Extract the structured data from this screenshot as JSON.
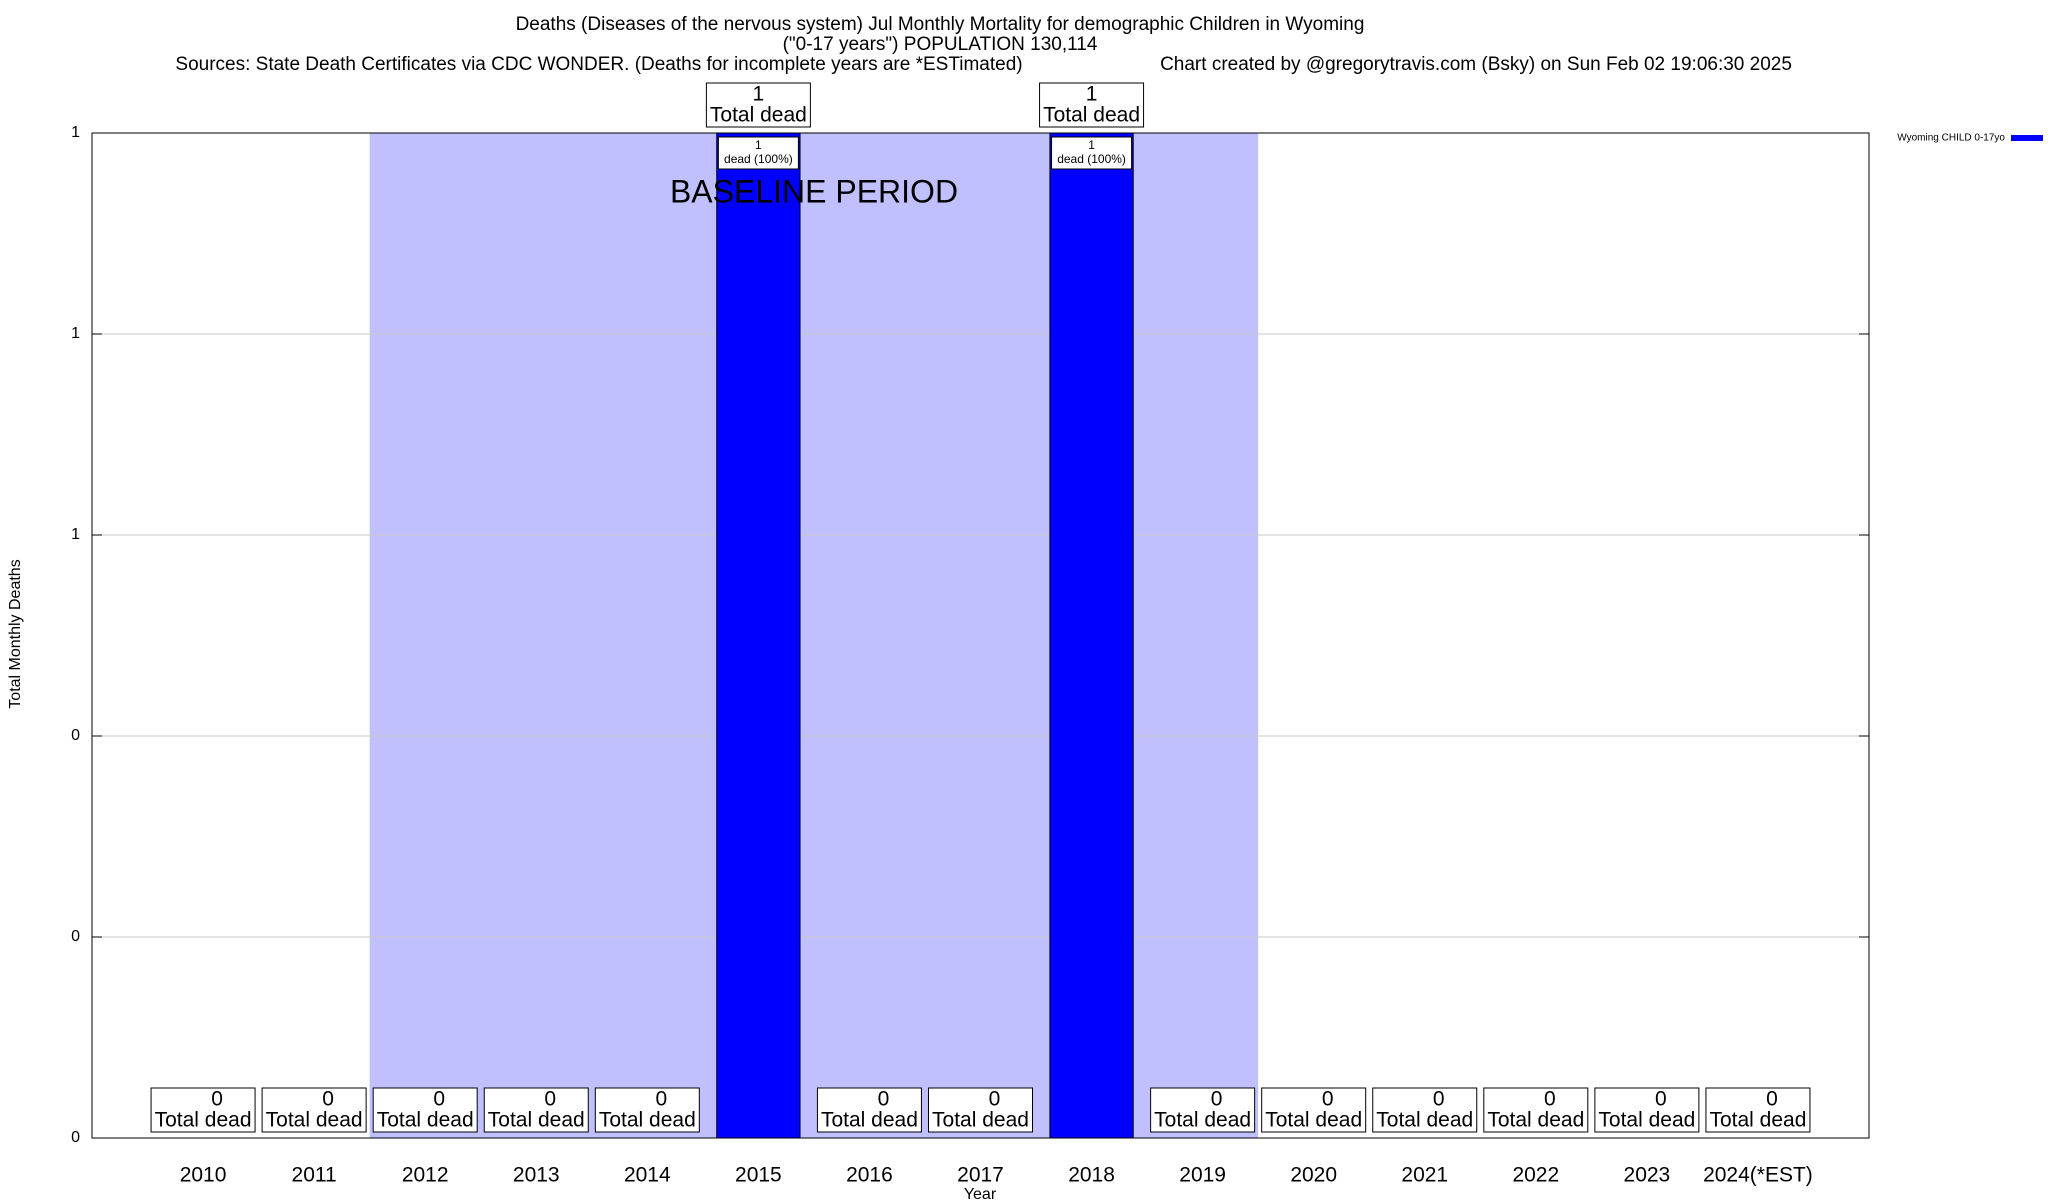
{
  "chart_data": {
    "type": "bar",
    "title": "Deaths (Diseases of the nervous system) Jul Monthly Mortality for demographic Children in Wyoming",
    "subtitle": "(\"0-17 years\") POPULATION 130,114",
    "source": "Sources: State Death Certificates via CDC WONDER. (Deaths for incomplete years are *ESTimated)",
    "credit": "Chart created by @gregorytravis.com (Bsky) on Sun Feb 02 19:06:30 2025",
    "x_label": "Year",
    "y_label": "Total Monthly Deaths",
    "categories": [
      "2010",
      "2011",
      "2012",
      "2013",
      "2014",
      "2015",
      "2016",
      "2017",
      "2018",
      "2019",
      "2020",
      "2021",
      "2022",
      "2023",
      "2024(*EST)"
    ],
    "series": [
      {
        "name": "Wyoming CHILD 0-17yo",
        "color": "#0000ff",
        "values": [
          0,
          0,
          0,
          0,
          0,
          1,
          0,
          0,
          1,
          0,
          0,
          0,
          0,
          0,
          0
        ]
      }
    ],
    "total_label": "Total dead",
    "inner_labels": [
      null,
      null,
      null,
      null,
      null,
      "dead (100%)",
      null,
      null,
      "dead (100%)",
      null,
      null,
      null,
      null,
      null,
      null
    ],
    "baseline": {
      "label": "BASELINE PERIOD",
      "start": "2012",
      "end": "2019",
      "color": "#c0c0ff"
    },
    "ylim": [
      0,
      1
    ],
    "yticks": [
      0,
      {
        "value": 0.2,
        "label": "0"
      },
      {
        "value": 0.4,
        "label": "0"
      },
      {
        "value": 0.6,
        "label": "1"
      },
      {
        "value": 0.8,
        "label": "1"
      },
      1
    ],
    "grid": true,
    "legend": "top-right"
  }
}
